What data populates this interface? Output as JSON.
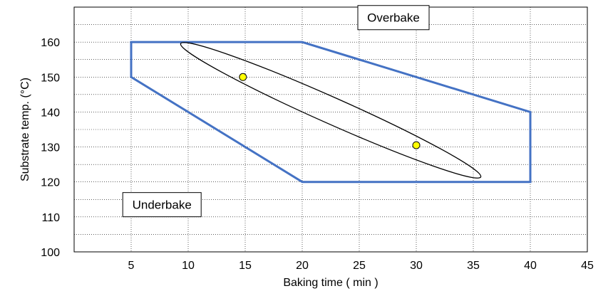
{
  "chart_data": {
    "type": "scatter",
    "title": "",
    "xlabel": "Baking time ( min )",
    "ylabel": "Substrate temp. (°C)",
    "xlim": [
      0,
      45
    ],
    "ylim": [
      100,
      170
    ],
    "xticks": [
      5,
      10,
      15,
      20,
      25,
      30,
      35,
      40,
      45
    ],
    "yticks": [
      100,
      110,
      120,
      130,
      140,
      150,
      160
    ],
    "grid": true,
    "grid_minor": true,
    "process_window": {
      "color": "#4472c4",
      "points": [
        [
          5,
          160
        ],
        [
          20,
          160
        ],
        [
          40,
          140
        ],
        [
          40,
          120
        ],
        [
          20,
          120
        ],
        [
          5,
          150
        ]
      ]
    },
    "ellipse": {
      "color": "#000000",
      "center": [
        22.5,
        140.5
      ],
      "comment": ""
    },
    "points": [
      {
        "x": 14.8,
        "y": 150
      },
      {
        "x": 30,
        "y": 130.5
      }
    ],
    "point_color": "#ffff00",
    "annotations": [
      {
        "text": "Overbake",
        "x": 28,
        "y": 167
      },
      {
        "text": "Underbake",
        "x": 7.7,
        "y": 113.5
      }
    ]
  }
}
